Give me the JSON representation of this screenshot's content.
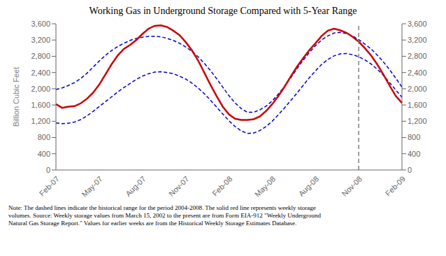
{
  "chart_data": {
    "type": "line",
    "title": "Working Gas in Underground Storage Compared with 5-Year Range",
    "y_label": "Billion Cubic Feet",
    "annotations": [
      "Note:   The dashed lines indicate the historical range for the period 2004-2008.  The solid red line represents weekly storage\nvolumes.  Source:  Weekly storage values from March 15, 2002 to the present are from Form EIA-912 \"Weekly Underground\nNatural Gas Storage Report.\"  Values for earlier weeks are from the Historical Weekly Storage Estimates Database."
    ],
    "categories": [
      "Feb-07",
      null,
      null,
      null,
      null,
      null,
      null,
      "May-07",
      null,
      null,
      null,
      null,
      null,
      null,
      "Aug-07",
      null,
      null,
      null,
      null,
      null,
      null,
      "Nov-07",
      null,
      null,
      null,
      null,
      null,
      null,
      "Feb-08",
      null,
      null,
      null,
      null,
      null,
      null,
      "May-08",
      null,
      null,
      null,
      null,
      null,
      null,
      "Aug-08",
      null,
      null,
      null,
      null,
      null,
      null,
      "Nov-08",
      null,
      null,
      null,
      null,
      null,
      null,
      "Feb-09"
    ],
    "series": [
      {
        "color": "#0000cc",
        "line_style": "dashed",
        "values": [
          1980,
          2020,
          2080,
          2150,
          2250,
          2380,
          2530,
          2680,
          2820,
          2940,
          3040,
          3120,
          3190,
          3240,
          3270,
          3290,
          3290,
          3280,
          3240,
          3190,
          3120,
          3030,
          2920,
          2790,
          2630,
          2450,
          2250,
          2040,
          1830,
          1650,
          1510,
          1420,
          1420,
          1480,
          1570,
          1700,
          1870,
          2060,
          2270,
          2490,
          2700,
          2890,
          3060,
          3200,
          3300,
          3370,
          3390,
          3360,
          3300,
          3210,
          3100,
          2980,
          2830,
          2660,
          2470,
          2260,
          2040
        ]
      },
      {
        "color": "#0000cc",
        "line_style": "dashed",
        "values": [
          1160,
          1140,
          1150,
          1180,
          1240,
          1330,
          1440,
          1560,
          1680,
          1800,
          1920,
          2030,
          2130,
          2230,
          2310,
          2370,
          2410,
          2420,
          2400,
          2370,
          2310,
          2240,
          2140,
          2020,
          1880,
          1720,
          1550,
          1380,
          1210,
          1070,
          960,
          900,
          910,
          970,
          1070,
          1200,
          1360,
          1530,
          1710,
          1890,
          2080,
          2270,
          2440,
          2600,
          2720,
          2810,
          2860,
          2870,
          2840,
          2790,
          2710,
          2610,
          2480,
          2330,
          2150,
          1970,
          1790
        ]
      },
      {
        "color": "#cc0000",
        "line_style": "solid",
        "values": [
          1620,
          1530,
          1560,
          1570,
          1640,
          1750,
          1900,
          2100,
          2350,
          2600,
          2820,
          2980,
          3080,
          3200,
          3350,
          3480,
          3550,
          3560,
          3520,
          3430,
          3320,
          3150,
          2950,
          2700,
          2400,
          2100,
          1820,
          1560,
          1370,
          1260,
          1230,
          1230,
          1250,
          1320,
          1450,
          1620,
          1820,
          2050,
          2300,
          2540,
          2750,
          2950,
          3120,
          3300,
          3430,
          3480,
          3440,
          3380,
          3280,
          3160,
          3000,
          2820,
          2600,
          2350,
          2080,
          1820,
          1650
        ]
      }
    ],
    "reference_line": {
      "x": "Nov-08",
      "color": "#808080",
      "line_style": "dashed"
    },
    "ylim": [
      0,
      3600
    ],
    "yticks": [
      0,
      400,
      800,
      {
        "value": 1200,
        "label": "1,200"
      },
      {
        "value": 1600,
        "label": "1,600"
      },
      {
        "value": 2000,
        "label": "2,000"
      },
      {
        "value": 2400,
        "label": "2,400"
      },
      {
        "value": 2800,
        "label": "2,800"
      },
      {
        "value": 3200,
        "label": "3,200"
      },
      {
        "value": 3600,
        "label": "3,600"
      }
    ],
    "y2lim": [
      0,
      3600
    ],
    "y2ticks": [
      0,
      400,
      800,
      {
        "value": 1200,
        "label": "1,200"
      },
      {
        "value": 1600,
        "label": "1,600"
      },
      {
        "value": 2000,
        "label": "2,000"
      },
      {
        "value": 2400,
        "label": "2,400"
      },
      {
        "value": 2800,
        "label": "2,800"
      },
      {
        "value": 3200,
        "label": "3,200"
      },
      {
        "value": 3600,
        "label": "3,600"
      }
    ],
    "grid": false
  }
}
